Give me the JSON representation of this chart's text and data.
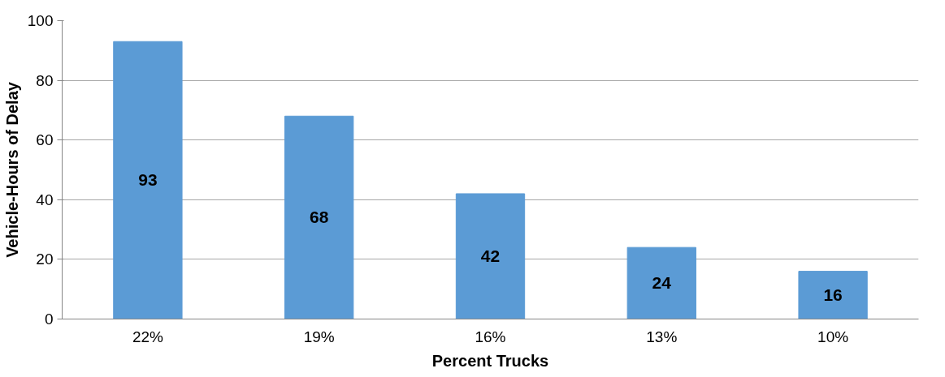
{
  "chart_data": {
    "type": "bar",
    "xlabel": "Percent Trucks",
    "ylabel": "Vehicle-Hours of Delay",
    "categories": [
      "22%",
      "19%",
      "16%",
      "13%",
      "10%"
    ],
    "values": [
      93,
      68,
      42,
      24,
      16
    ],
    "color": "#5b9bd5",
    "ylim": [
      0,
      100
    ],
    "yticks": [
      0,
      20,
      40,
      60,
      80,
      100
    ],
    "grid": "y",
    "data_labels": true
  }
}
